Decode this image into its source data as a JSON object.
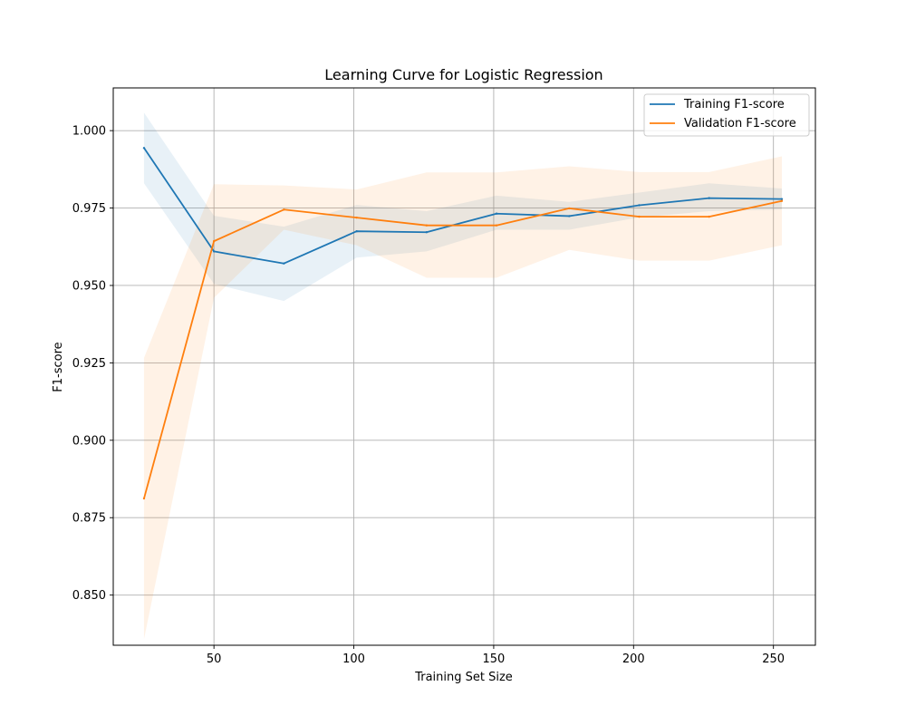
{
  "chart_data": {
    "type": "line",
    "title": "Learning Curve for Logistic Regression",
    "xlabel": "Training Set Size",
    "ylabel": "F1-score",
    "xlim": [
      14,
      265
    ],
    "ylim": [
      0.8338,
      1.0138
    ],
    "xticks": [
      50,
      100,
      150,
      200,
      250
    ],
    "yticks": [
      0.85,
      0.875,
      0.9,
      0.925,
      0.95,
      0.975,
      1.0
    ],
    "ytick_labels": [
      "0.850",
      "0.875",
      "0.900",
      "0.925",
      "0.950",
      "0.975",
      "1.000"
    ],
    "grid": true,
    "legend_position": "top-right",
    "x": [
      25,
      50,
      75,
      101,
      126,
      151,
      177,
      202,
      227,
      253
    ],
    "series": [
      {
        "name": "Training F1-score",
        "color": "#1f77b4",
        "band_opacity": 0.1,
        "values": [
          0.9944,
          0.961,
          0.9571,
          0.9675,
          0.9672,
          0.9732,
          0.9724,
          0.9759,
          0.9782,
          0.9779
        ],
        "lower": [
          0.983,
          0.9505,
          0.945,
          0.959,
          0.961,
          0.968,
          0.968,
          0.972,
          0.974,
          0.9745
        ],
        "upper": [
          1.0058,
          0.9725,
          0.969,
          0.976,
          0.974,
          0.979,
          0.977,
          0.98,
          0.983,
          0.9813
        ]
      },
      {
        "name": "Validation F1-score",
        "color": "#ff7f0e",
        "band_opacity": 0.1,
        "values": [
          0.8812,
          0.9643,
          0.9745,
          0.9719,
          0.9694,
          0.9694,
          0.9749,
          0.9722,
          0.9722,
          0.9773
        ],
        "lower": [
          0.8358,
          0.946,
          0.968,
          0.963,
          0.9525,
          0.9525,
          0.9615,
          0.958,
          0.958,
          0.963
        ],
        "upper": [
          0.9266,
          0.9827,
          0.9823,
          0.981,
          0.9865,
          0.9865,
          0.9885,
          0.9866,
          0.9866,
          0.9917
        ]
      }
    ]
  }
}
